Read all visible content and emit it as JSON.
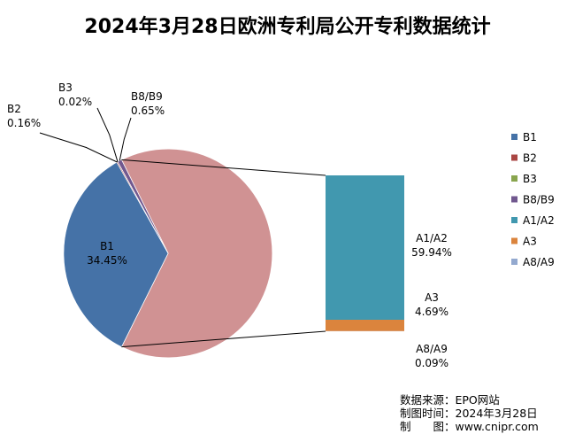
{
  "chart_data": {
    "type": "pie",
    "title": "2024年3月28日欧洲专利局公开专利数据统计",
    "categories": [
      "B1",
      "B2",
      "B3",
      "B8/B9",
      "A1/A2",
      "A3",
      "A8/A9"
    ],
    "values": [
      34.45,
      0.16,
      0.02,
      0.65,
      59.94,
      4.69,
      0.09
    ],
    "value_labels": [
      "34.45%",
      "0.16%",
      "0.02%",
      "0.65%",
      "59.94%",
      "4.69%",
      "0.09%"
    ],
    "colors": [
      "#4572A7",
      "#AA4643",
      "#89A54E",
      "#71588F",
      "#4198AF",
      "#DB843D",
      "#93A9CF"
    ],
    "other_slice_color": "#D09293",
    "breakout": [
      "A1/A2",
      "A3",
      "A8/A9"
    ],
    "legend_position": "right"
  },
  "source": {
    "line1": "数据来源：EPO网站",
    "line2": "制图时间：2024年3月28日",
    "line3": "制　　图：www.cnipr.com"
  }
}
